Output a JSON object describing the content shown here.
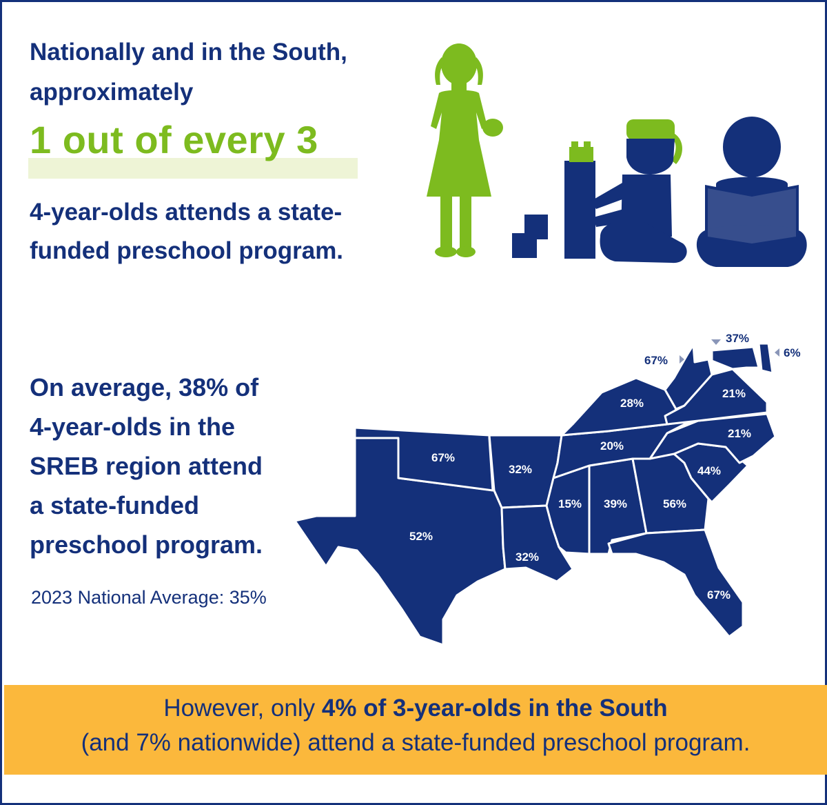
{
  "headline": {
    "line1": "Nationally and in the South,",
    "line2": "approximately",
    "highlight": "1 out of every 3",
    "line3": "4-year-olds attends a state-",
    "line4": "funded preschool program."
  },
  "average_block": {
    "lines": [
      "On average, 38% of",
      "4-year-olds in the",
      "SREB region attend",
      "a state-funded",
      "preschool program."
    ],
    "national_average": "2023 National Average: 35%"
  },
  "map_labels": {
    "texas": "52%",
    "oklahoma": "67%",
    "arkansas": "32%",
    "louisiana": "32%",
    "mississippi": "15%",
    "alabama": "39%",
    "georgia": "56%",
    "florida": "67%",
    "south_carolina": "44%",
    "north_carolina": "21%",
    "tennessee": "20%",
    "kentucky": "28%",
    "virginia": "21%",
    "west_virginia": "67%",
    "maryland": "37%",
    "delaware": "6%"
  },
  "banner": {
    "prefix": "However, only ",
    "bold": "4% of 3-year-olds in the South",
    "line2": "(and 7% nationwide) attend a state-funded preschool program."
  },
  "colors": {
    "navy": "#14307a",
    "green": "#7dbb1f",
    "banner": "#fbb83c",
    "pointer": "#8a96b8"
  },
  "icons": [
    "girl-standing-icon",
    "girl-building-blocks-icon",
    "boy-reading-icon"
  ]
}
